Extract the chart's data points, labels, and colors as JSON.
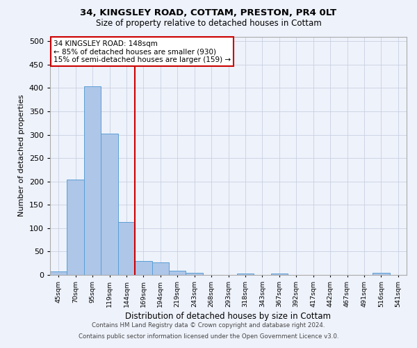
{
  "title1": "34, KINGSLEY ROAD, COTTAM, PRESTON, PR4 0LT",
  "title2": "Size of property relative to detached houses in Cottam",
  "xlabel": "Distribution of detached houses by size in Cottam",
  "ylabel": "Number of detached properties",
  "bin_labels": [
    "45sqm",
    "70sqm",
    "95sqm",
    "119sqm",
    "144sqm",
    "169sqm",
    "194sqm",
    "219sqm",
    "243sqm",
    "268sqm",
    "293sqm",
    "318sqm",
    "343sqm",
    "367sqm",
    "392sqm",
    "417sqm",
    "442sqm",
    "467sqm",
    "491sqm",
    "516sqm",
    "541sqm"
  ],
  "bar_values": [
    8,
    204,
    403,
    303,
    113,
    30,
    27,
    9,
    5,
    0,
    0,
    3,
    0,
    3,
    0,
    0,
    0,
    0,
    0,
    4,
    0
  ],
  "bar_color": "#aec6e8",
  "bar_edge_color": "#5a9fd4",
  "vline_color": "#cc0000",
  "annotation_text": "34 KINGSLEY ROAD: 148sqm\n← 85% of detached houses are smaller (930)\n15% of semi-detached houses are larger (159) →",
  "annotation_box_color": "#ffffff",
  "annotation_box_edge": "#cc0000",
  "ylim": [
    0,
    510
  ],
  "yticks": [
    0,
    50,
    100,
    150,
    200,
    250,
    300,
    350,
    400,
    450,
    500
  ],
  "footnote1": "Contains HM Land Registry data © Crown copyright and database right 2024.",
  "footnote2": "Contains public sector information licensed under the Open Government Licence v3.0.",
  "bg_color": "#eef2fb",
  "grid_color": "#c8d0e0"
}
